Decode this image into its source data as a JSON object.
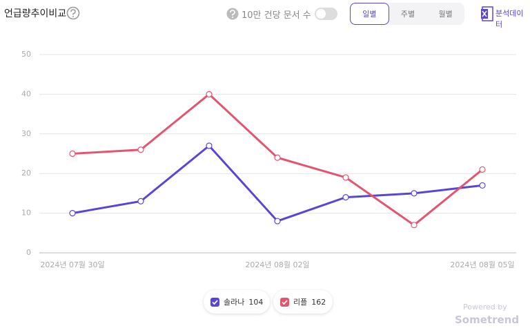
{
  "header": {
    "title": "언급량추이비교",
    "toggle_label": "10만 건당 문서 수",
    "tabs": [
      "일별",
      "주별",
      "월별"
    ],
    "export_label": "분석데이터"
  },
  "chart_data": {
    "type": "line",
    "categories": [
      "2024년 07월 30일",
      null,
      null,
      "2024년 08월 02일",
      null,
      null,
      "2024년 08월 05일"
    ],
    "series": [
      {
        "name": "솔라나",
        "color": "#5a44d8",
        "values": [
          10,
          13,
          27,
          8,
          14,
          15,
          17
        ],
        "total": 104
      },
      {
        "name": "리플",
        "color": "#e5546f",
        "values": [
          25,
          26,
          40,
          24,
          19,
          7,
          21
        ],
        "total": 162
      }
    ],
    "ylim": [
      0,
      50
    ],
    "yticks": [
      0,
      10,
      20,
      30,
      40,
      50
    ],
    "grid": true
  },
  "footer": {
    "powered_by": "Powered by",
    "brand": "Sometrend"
  }
}
